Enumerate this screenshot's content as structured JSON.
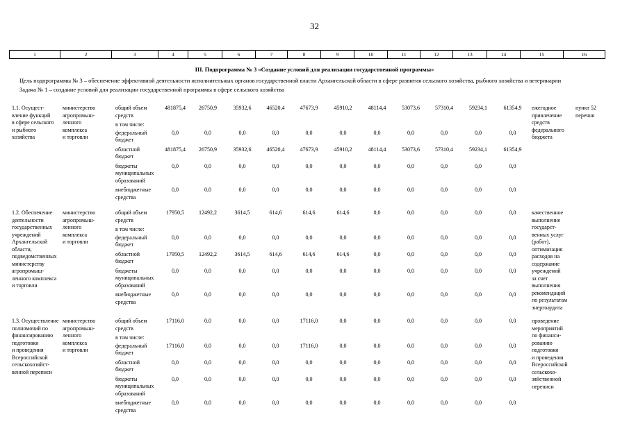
{
  "page": {
    "number": "32"
  },
  "column_strip": [
    "1",
    "2",
    "3",
    "4",
    "5",
    "6",
    "7",
    "8",
    "9",
    "10",
    "11",
    "12",
    "13",
    "14",
    "15",
    "16"
  ],
  "section": {
    "title": "III. Подпрограмма № 3 «Создание условий для реализации государственной программы»",
    "goal": "Цель подпрограммы № 3 – обеспечение эффективной деятельности исполнительных органов государственной власти Архангельской области в сфере развития сельского хозяйства, рыбного хозяйства и ветеринарии",
    "task": "Задача № 1 – создание условий для реализации государственной программы в сфере сельского хозяйства"
  },
  "table": {
    "measures": [
      {
        "name": "1.1. Осущест-\nвление функций\nв сфере сельского\nи рыбного\nхозяйства",
        "executor": "министерство\nагропромыш-\nленного\nкомплекса\nи торговли",
        "funding": [
          {
            "label": "общий объем\nсредств",
            "values": [
              "481875,4",
              "26750,9",
              "35932,6",
              "46520,4",
              "47673,9",
              "45910,2",
              "48114,4",
              "53073,6",
              "57310,4",
              "59234,1",
              "61354,9"
            ]
          },
          {
            "label": "в том числе:",
            "values": []
          },
          {
            "label": "федеральный\nбюджет",
            "values": [
              "0,0",
              "0,0",
              "0,0",
              "0,0",
              "0,0",
              "0,0",
              "0,0",
              "0,0",
              "0,0",
              "0,0",
              "0,0"
            ]
          },
          {
            "label": "областной\nбюджет",
            "values": [
              "481875,4",
              "26750,9",
              "35932,6",
              "46520,4",
              "47673,9",
              "45910,2",
              "48114,4",
              "53073,6",
              "57310,4",
              "59234,1",
              "61354,9"
            ]
          },
          {
            "label": "бюджеты\nмуниципальных\nобразований",
            "values": [
              "0,0",
              "0,0",
              "0,0",
              "0,0",
              "0,0",
              "0,0",
              "0,0",
              "0,0",
              "0,0",
              "0,0",
              "0,0"
            ]
          },
          {
            "label": "внебюджетные\nсредства",
            "values": [
              "0,0",
              "0,0",
              "0,0",
              "0,0",
              "0,0",
              "0,0",
              "0,0",
              "0,0",
              "0,0",
              "0,0",
              "0,0"
            ]
          }
        ],
        "expected_result": "ежегодное\nпривлечение\nсредств\nфедерального\nбюджета",
        "target_link": "пункт 52\nперечня"
      },
      {
        "name": "1.2. Обеспечение\nдеятельности\nгосударственных\nучреждений\nАрхангельской\nобласти,\nподведомственных\nминистерству\nагропромыш-\nленного комплекса\nи торговли",
        "executor": "министерство\nагропромыш-\nленного\nкомплекса\nи торговли",
        "funding": [
          {
            "label": "общий объем\nсредств",
            "values": [
              "17950,5",
              "12492,2",
              "3614,5",
              "614,6",
              "614,6",
              "614,6",
              "0,0",
              "0,0",
              "0,0",
              "0,0",
              "0,0"
            ]
          },
          {
            "label": "в том числе:",
            "values": []
          },
          {
            "label": "федеральный\nбюджет",
            "values": [
              "0,0",
              "0,0",
              "0,0",
              "0,0",
              "0,0",
              "0,0",
              "0,0",
              "0,0",
              "0,0",
              "0,0",
              "0,0"
            ]
          },
          {
            "label": "областной\nбюджет",
            "values": [
              "17950,5",
              "12492,2",
              "3614,5",
              "614,6",
              "614,6",
              "614,6",
              "0,0",
              "0,0",
              "0,0",
              "0,0",
              "0,0"
            ]
          },
          {
            "label": "бюджеты\nмуниципальных\nобразований",
            "values": [
              "0,0",
              "0,0",
              "0,0",
              "0,0",
              "0,0",
              "0,0",
              "0,0",
              "0,0",
              "0,0",
              "0,0",
              "0,0"
            ]
          },
          {
            "label": "внебюджетные\nсредства",
            "values": [
              "0,0",
              "0,0",
              "0,0",
              "0,0",
              "0,0",
              "0,0",
              "0,0",
              "0,0",
              "0,0",
              "0,0",
              "0,0"
            ]
          }
        ],
        "expected_result": "качественное\nвыполнение\nгосударст-\nвенных услуг\n(работ),\nоптимизация\nрасходов на\nсодержание\nучреждений\nза счет\nвыполнения\nрекомендаций\nпо результатам\nэнергоаудита",
        "target_link": ""
      },
      {
        "name": "1.3. Осуществление\nполномочий по\nфинансированию\nподготовки\nи проведения\nВсероссийской\nсельскохозяйст-\nвенной переписи",
        "executor": "министерство\nагропромыш-\nленного\nкомплекса\nи торговли",
        "funding": [
          {
            "label": "общий объем\nсредств",
            "values": [
              "17116,0",
              "0,0",
              "0,0",
              "0,0",
              "17116,0",
              "0,0",
              "0,0",
              "0,0",
              "0,0",
              "0,0",
              "0,0"
            ]
          },
          {
            "label": "в том числе:",
            "values": []
          },
          {
            "label": "федеральный\nбюджет",
            "values": [
              "17116,0",
              "0,0",
              "0,0",
              "0,0",
              "17116,0",
              "0,0",
              "0,0",
              "0,0",
              "0,0",
              "0,0",
              "0,0"
            ]
          },
          {
            "label": "областной\nбюджет",
            "values": [
              "0,0",
              "0,0",
              "0,0",
              "0,0",
              "0,0",
              "0,0",
              "0,0",
              "0,0",
              "0,0",
              "0,0",
              "0,0"
            ]
          },
          {
            "label": "бюджеты\nмуниципальных\nобразований",
            "values": [
              "0,0",
              "0,0",
              "0,0",
              "0,0",
              "0,0",
              "0,0",
              "0,0",
              "0,0",
              "0,0",
              "0,0",
              "0,0"
            ]
          },
          {
            "label": "внебюджетные\nсредства",
            "values": [
              "0,0",
              "0,0",
              "0,0",
              "0,0",
              "0,0",
              "0,0",
              "0,0",
              "0,0",
              "0,0",
              "0,0",
              "0,0"
            ]
          }
        ],
        "expected_result": "проведение\nмероприятий\nпо финанси-\nрованию\nподготовки\nи проведения\nВсероссийской\nсельскохо-\nзяйственной\nпереписи",
        "target_link": ""
      }
    ]
  }
}
